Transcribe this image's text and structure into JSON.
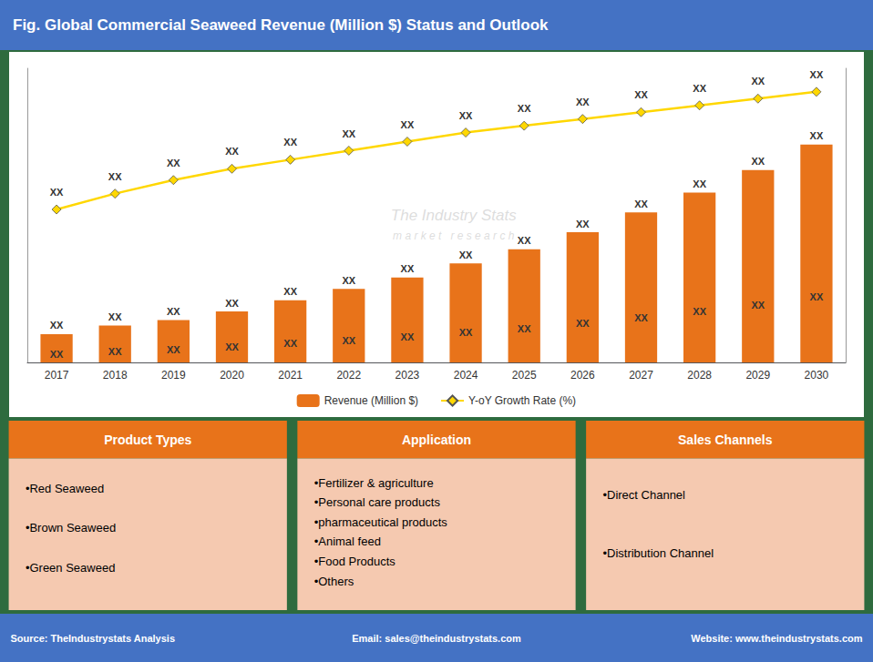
{
  "chart_data": {
    "type": "bar",
    "title": "Fig. Global Commercial Seaweed Revenue (Million $) Status and Outlook",
    "categories": [
      "2017",
      "2018",
      "2019",
      "2020",
      "2021",
      "2022",
      "2023",
      "2024",
      "2025",
      "2026",
      "2027",
      "2028",
      "2029",
      "2030"
    ],
    "ylim": [
      0,
      103.95
    ],
    "y2lim": [
      -3.26,
      9.74
    ],
    "grid": false,
    "tick_labels": "x",
    "legend": "bottom",
    "series": [
      {
        "name": "Revenue (Million $)",
        "type": "bar",
        "color": "#E8731A",
        "values": [
          10,
          13,
          15,
          18,
          22,
          26,
          30,
          35,
          40,
          46,
          53,
          60,
          68,
          77
        ],
        "data_labels": true,
        "value_labels": [
          "XX",
          "XX",
          "XX",
          "XX",
          "XX",
          "XX",
          "XX",
          "XX",
          "XX",
          "XX",
          "XX",
          "XX",
          "XX",
          "XX"
        ],
        "inner_labels": [
          "XX",
          "XX",
          "XX",
          "XX",
          "XX",
          "XX",
          "XX",
          "XX",
          "XX",
          "XX",
          "XX",
          "XX",
          "XX",
          "XX"
        ]
      },
      {
        "name": "Y-oY Growth Rate (%)",
        "type": "line",
        "axis": "y2",
        "color": "#FFD700",
        "marker": "diamond",
        "values": [
          3.5,
          4.2,
          4.8,
          5.3,
          5.7,
          6.1,
          6.5,
          6.9,
          7.2,
          7.5,
          7.8,
          8.1,
          8.4,
          8.7
        ],
        "data_labels": true,
        "value_labels": [
          "XX",
          "XX",
          "XX",
          "XX",
          "XX",
          "XX",
          "XX",
          "XX",
          "XX",
          "XX",
          "XX",
          "XX",
          "XX",
          "XX"
        ]
      }
    ],
    "watermark": [
      "The Industry Stats",
      "m a r k e t   r e s e a r c h"
    ],
    "panels": [
      {
        "title": "Product Types",
        "items": [
          "•Red Seaweed",
          "•Brown Seaweed",
          "•Green Seaweed"
        ]
      },
      {
        "title": "Application",
        "items": [
          "•Fertilizer & agriculture",
          "•Personal care products",
          "•pharmaceutical products",
          "•Animal feed",
          "•Food Products",
          "•Others"
        ]
      },
      {
        "title": "Sales Channels",
        "items": [
          "•Direct Channel",
          "•Distribution Channel"
        ]
      }
    ],
    "footer": [
      "Source: TheIndustrystats Analysis",
      "Email: sales@theindustrystats.com",
      "Website: www.theindustrystats.com"
    ]
  }
}
